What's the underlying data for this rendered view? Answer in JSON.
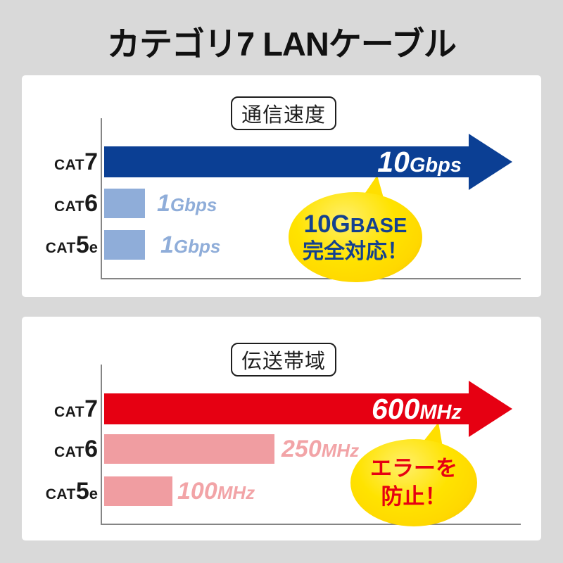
{
  "page_title": "カテゴリ7 LANケーブル",
  "colors": {
    "background": "#d9d9d9",
    "panel": "#ffffff",
    "title_text": "#111111",
    "speed_arrow": "#0b3f94",
    "speed_bar": "#8fadd9",
    "speed_value_text": "#8fadd9",
    "band_arrow": "#e60012",
    "band_bar": "#f09da1",
    "band_value_text": "#f2a4a7",
    "bubble_yellow": "#ffdf00",
    "bubble_text_blue": "#14418f",
    "bubble_text_red": "#e60012",
    "axis": "#858585"
  },
  "chart_data": [
    {
      "type": "bar",
      "orientation": "horizontal",
      "title": "通信速度",
      "categories": [
        "CAT7",
        "CAT6",
        "CAT5e"
      ],
      "category_parts": [
        [
          "CAT",
          "7",
          ""
        ],
        [
          "CAT",
          "6",
          ""
        ],
        [
          "CAT",
          "5",
          "e"
        ]
      ],
      "values": [
        10,
        1,
        1
      ],
      "unit": "Gbps",
      "value_labels": [
        "10Gbps",
        "1Gbps",
        "1Gbps"
      ],
      "value_label_parts": [
        [
          "10",
          "Gbps"
        ],
        [
          "1",
          "Gbps"
        ],
        [
          "1",
          "Gbps"
        ]
      ],
      "xlim": [
        0,
        10
      ],
      "grid": false,
      "legend": "none",
      "highlight_row": 0,
      "callout": {
        "line1_a": "10G",
        "line1_b": "BASE",
        "line2": "完全対応！",
        "full_text": "10GBASE完全対応！"
      }
    },
    {
      "type": "bar",
      "orientation": "horizontal",
      "title": "伝送帯域",
      "categories": [
        "CAT7",
        "CAT6",
        "CAT5e"
      ],
      "category_parts": [
        [
          "CAT",
          "7",
          ""
        ],
        [
          "CAT",
          "6",
          ""
        ],
        [
          "CAT",
          "5",
          "e"
        ]
      ],
      "values": [
        600,
        250,
        100
      ],
      "unit": "MHz",
      "value_labels": [
        "600MHz",
        "250MHz",
        "100MHz"
      ],
      "value_label_parts": [
        [
          "600",
          "MHz"
        ],
        [
          "250",
          "MHz"
        ],
        [
          "100",
          "MHz"
        ]
      ],
      "xlim": [
        0,
        600
      ],
      "grid": false,
      "legend": "none",
      "highlight_row": 0,
      "callout": {
        "line1_a": "エラーを",
        "line1_b": "",
        "line2": "防止！",
        "full_text": "エラーを防止！"
      }
    }
  ]
}
